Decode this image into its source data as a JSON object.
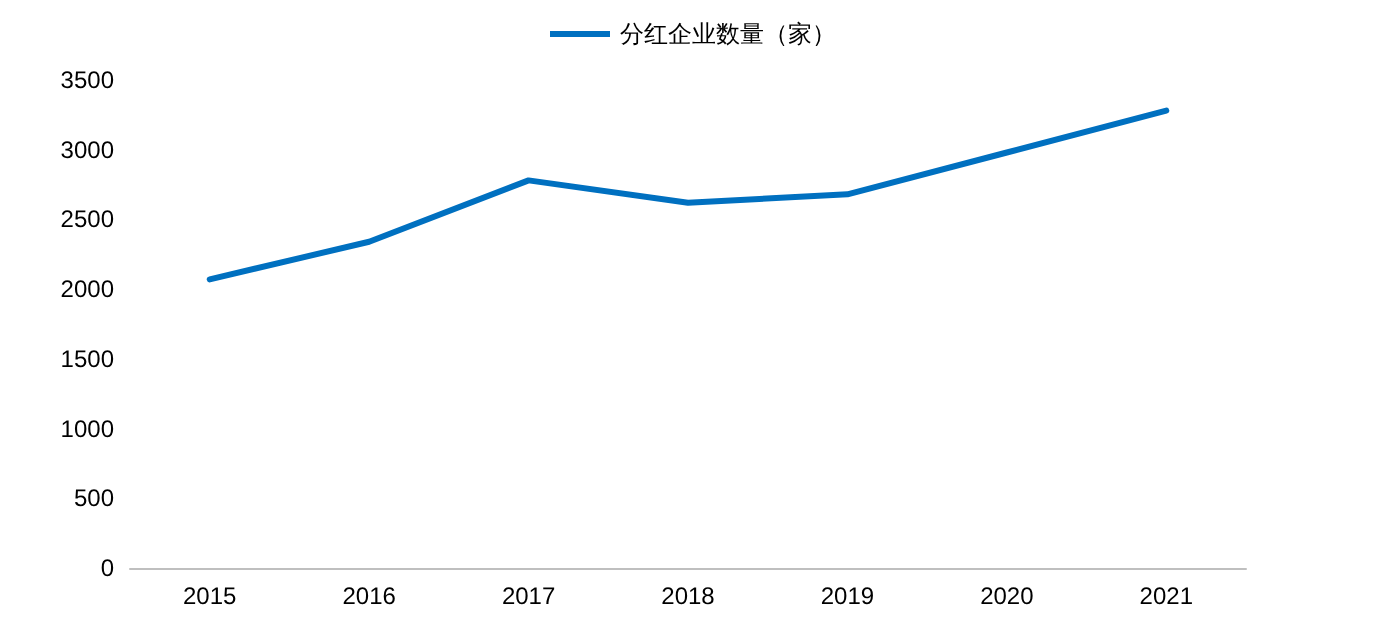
{
  "chart_data": {
    "type": "line",
    "categories": [
      "2015",
      "2016",
      "2017",
      "2018",
      "2019",
      "2020",
      "2021"
    ],
    "series": [
      {
        "name": "分红企业数量（家）",
        "color": "#0070c0",
        "values": [
          2070,
          2340,
          2780,
          2620,
          2680,
          2980,
          3280
        ]
      }
    ],
    "ylim": [
      0,
      3500
    ],
    "yticks": [
      0,
      500,
      1000,
      1500,
      2000,
      2500,
      3000,
      3500
    ],
    "grid": false,
    "legend": "top",
    "marker": "none",
    "line_style": "solid"
  }
}
